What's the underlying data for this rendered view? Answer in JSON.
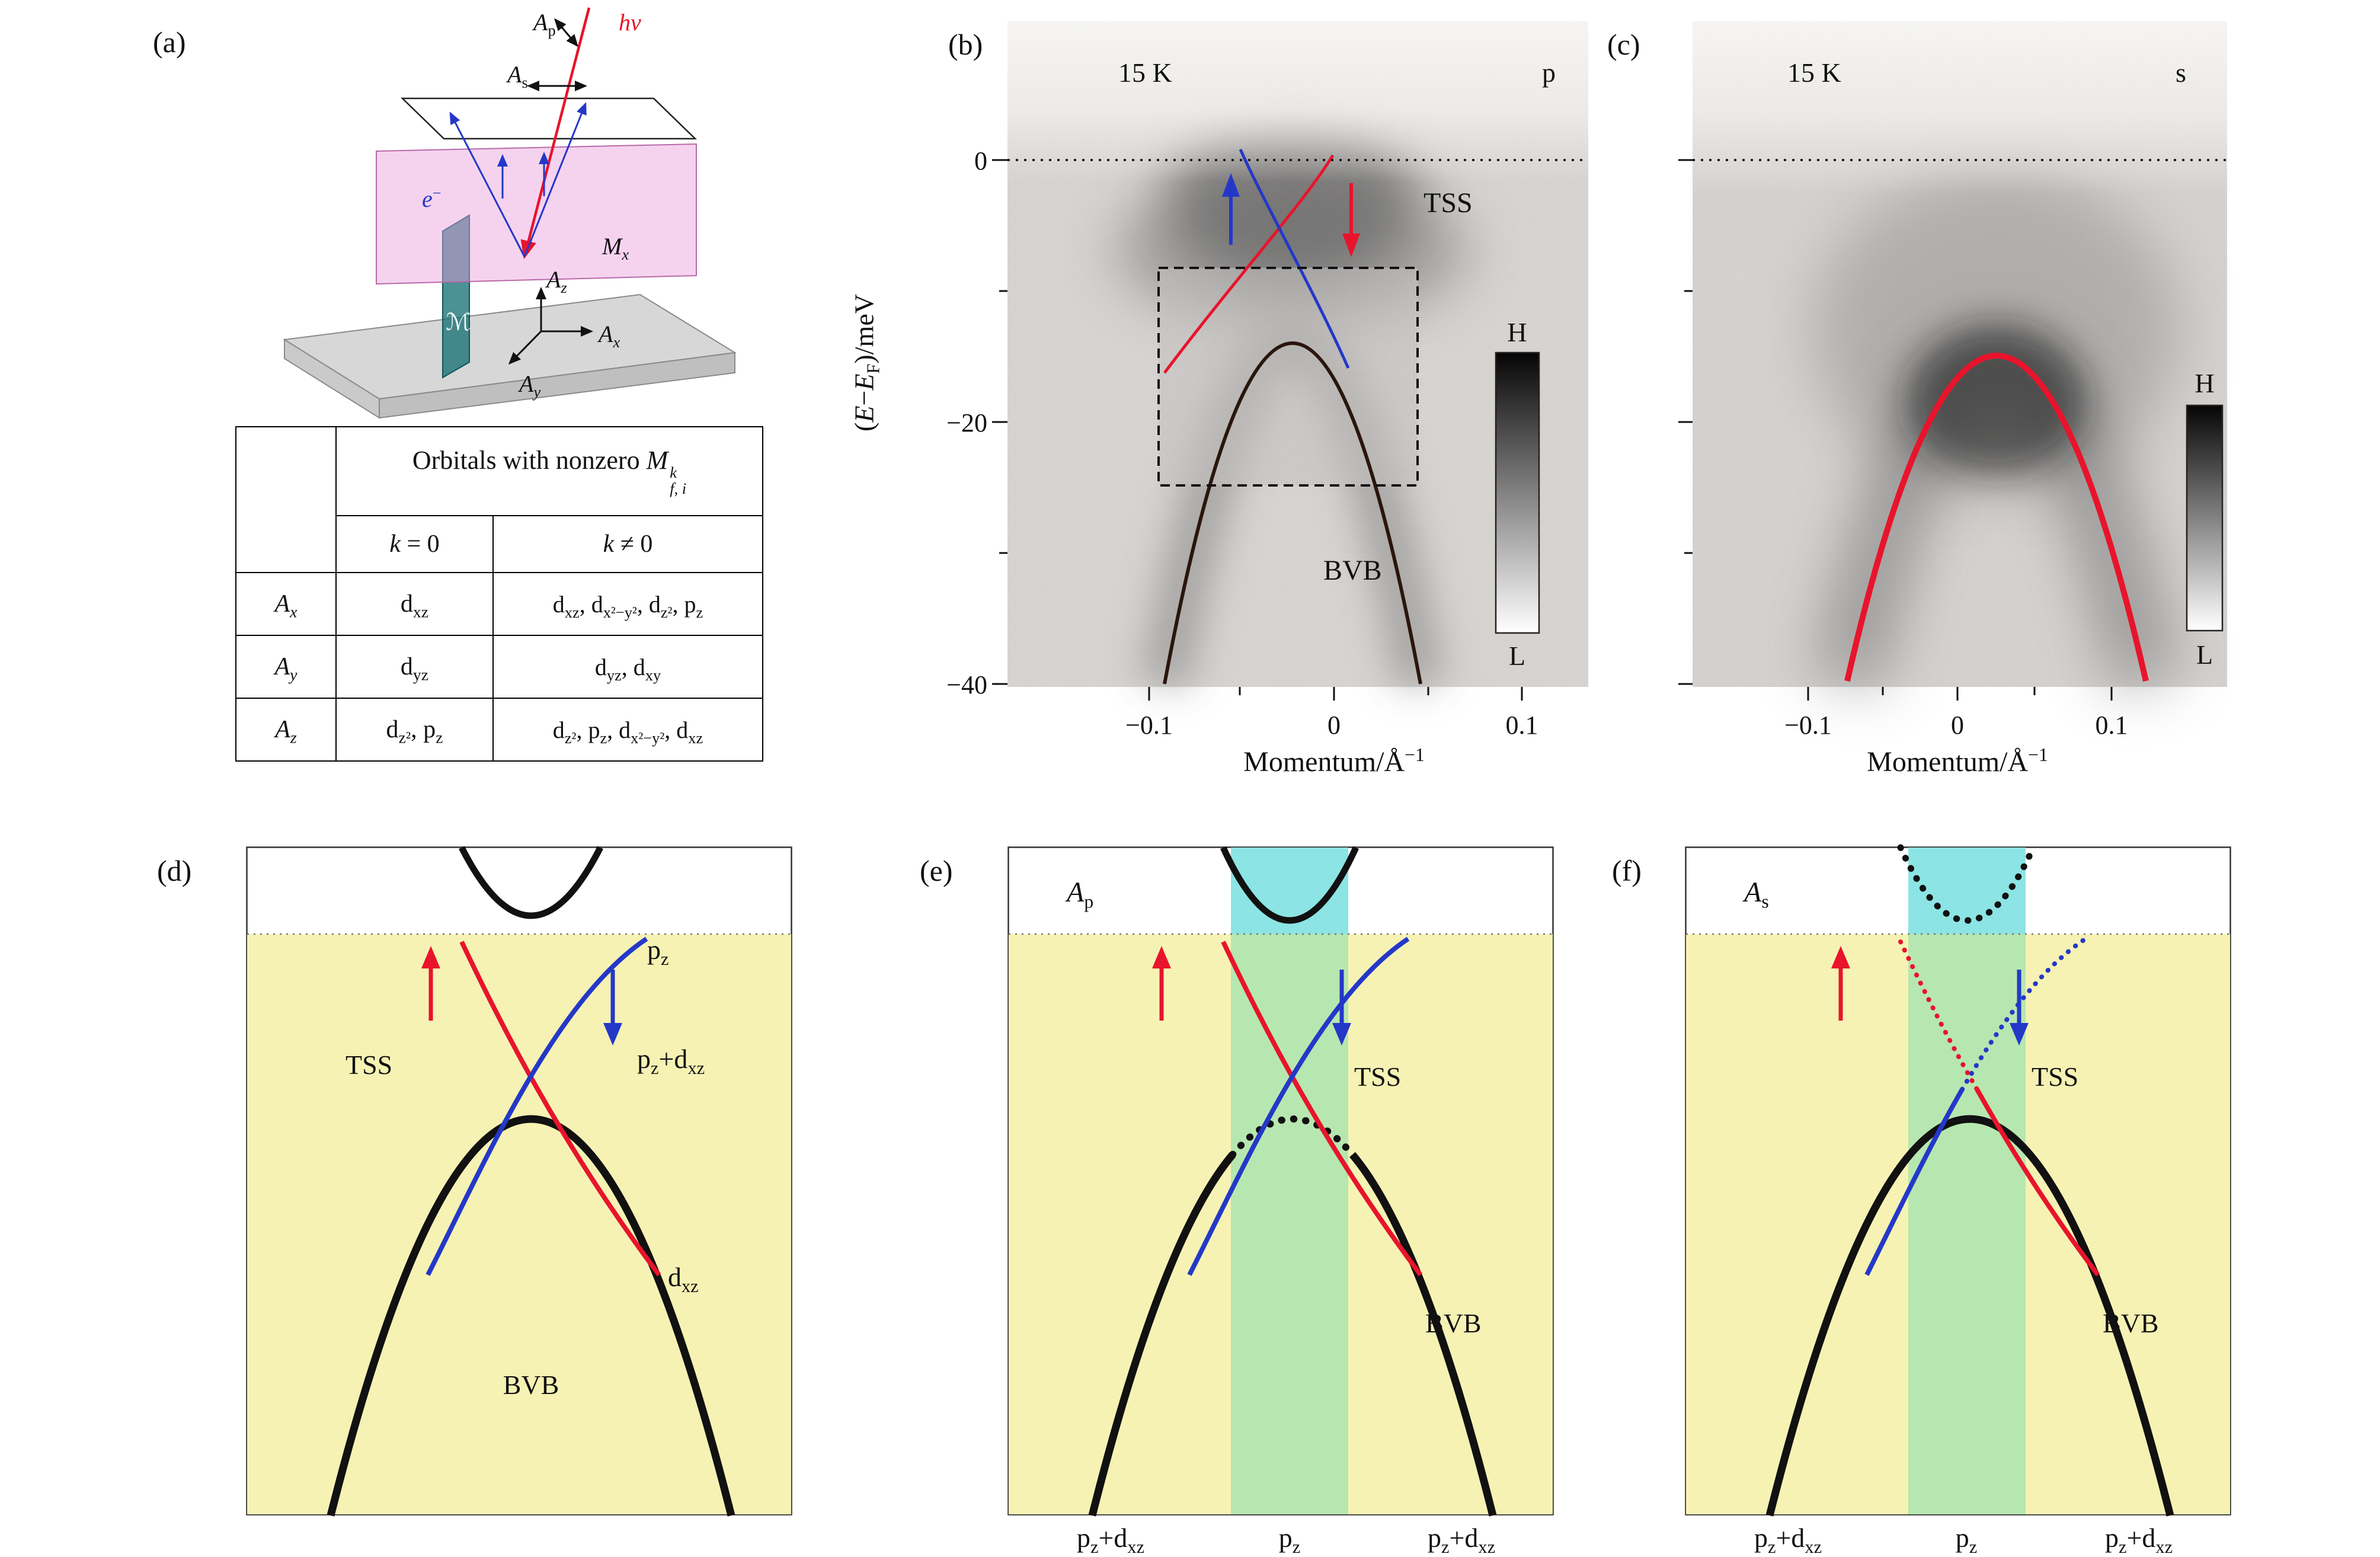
{
  "figure": {
    "panel_a": {
      "label": "(a)",
      "schematic": {
        "A_p": "<i>A</i><sub>p</sub>",
        "hv": "<i>hν</i>",
        "A_s": "<i>A</i><sub>s</sub>",
        "e_minus": "<i>e</i><sup>−</sup>",
        "M_x": "<i>M<sub>x</sub></i>",
        "M_script": "ℳ",
        "A_z": "<i>A<sub>z</sub></i>",
        "A_x": "<i>A<sub>x</sub></i>",
        "A_y": "<i>A<sub>y</sub></i>"
      },
      "table": {
        "title": "Orbitals with nonzero <i>M</i><span class=\"stack\"><span><i>k</i></span><span><i>f</i>, <i>i</i></span></span>",
        "col_k0": "<i>k</i> = 0",
        "col_knz": "<i>k</i> ≠ 0",
        "rows": [
          {
            "label": "<i>A<sub>x</sub></i>",
            "k0": "d<sub>xz</sub>",
            "knz": "d<sub>xz</sub>, d<sub>x²−y²</sub>, d<sub>z²</sub>, p<sub>z</sub>"
          },
          {
            "label": "<i>A<sub>y</sub></i>",
            "k0": "d<sub>yz</sub>",
            "knz": "d<sub>yz</sub>, d<sub>xy</sub>"
          },
          {
            "label": "<i>A<sub>z</sub></i>",
            "k0": "d<sub>z²</sub>, p<sub>z</sub>",
            "knz": "d<sub>z²</sub>, p<sub>z</sub>, d<sub>x²−y²</sub>, d<sub>xz</sub>"
          }
        ]
      }
    },
    "panel_b": {
      "label": "(b)",
      "temperature": "15 K",
      "polarization": "p",
      "tss": "TSS",
      "bvb": "BVB",
      "colorbar_high": "H",
      "colorbar_low": "L",
      "y_axis_label": "(<i>E</i>−<i>E</i><sub>F</sub>)/meV",
      "x_axis_label": "Momentum/Å<sup>−1</sup>",
      "y_ticks": [
        "0",
        "−20",
        "−40"
      ],
      "x_ticks": [
        "−0.1",
        "0",
        "0.1"
      ]
    },
    "panel_c": {
      "label": "(c)",
      "temperature": "15 K",
      "polarization": "s",
      "colorbar_high": "H",
      "colorbar_low": "L",
      "x_axis_label": "Momentum/Å<sup>−1</sup>",
      "x_ticks": [
        "−0.1",
        "0",
        "0.1"
      ]
    },
    "panel_d": {
      "label": "(d)",
      "pz": "p<sub>z</sub>",
      "tss": "TSS",
      "pz_dxz": "p<sub>z</sub>+d<sub>xz</sub>",
      "dxz": "d<sub>xz</sub>",
      "bvb": "BVB"
    },
    "panel_e": {
      "label": "(e)",
      "field": "<i>A</i><sub>p</sub>",
      "tss": "TSS",
      "bvb": "BVB",
      "bottom_labels": [
        "p<sub>z</sub>+d<sub>xz</sub>",
        "p<sub>z</sub>",
        "p<sub>z</sub>+d<sub>xz</sub>"
      ]
    },
    "panel_f": {
      "label": "(f)",
      "field": "<i>A</i><sub>s</sub>",
      "tss": "TSS",
      "bvb": "BVB",
      "bottom_labels": [
        "p<sub>z</sub>+d<sub>xz</sub>",
        "p<sub>z</sub>",
        "p<sub>z</sub>+d<sub>xz</sub>"
      ]
    }
  },
  "colors": {
    "spin_up_red": "#e8142c",
    "spin_down_blue": "#2438c8",
    "surface_yellow": "#f6f2b4",
    "pz_green": "#b7e7b0",
    "conduction_cyan": "#8ce4e4"
  }
}
